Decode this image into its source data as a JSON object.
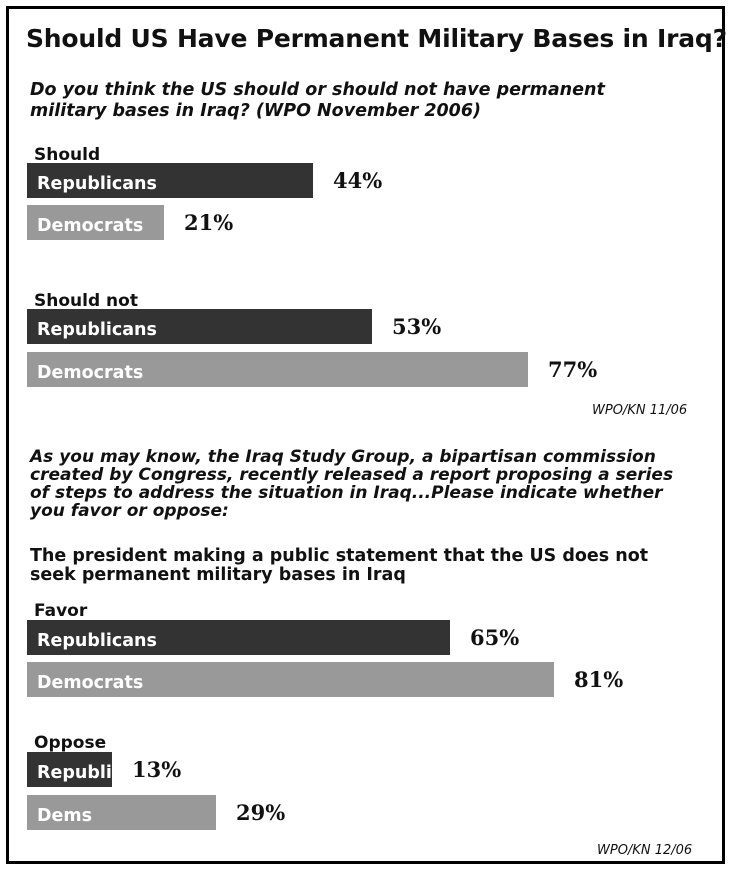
{
  "title": "Should US Have Permanent Military Bases in Iraq?",
  "q1": {
    "line1": "Do you think the US should or should not have permanent",
    "line2": "military bases in Iraq?  (WPO November 2006)"
  },
  "q2": {
    "line1": "As you may know, the Iraq Study Group, a bipartisan commission",
    "line2": "created by Congress, recently released a report proposing a series",
    "line3": "of steps to address the situation in Iraq...Please indicate whether",
    "line4": "you favor or oppose:"
  },
  "statement": {
    "line1": "The president making a public statement that the US does not",
    "line2": "seek permanent military bases in Iraq"
  },
  "source1": "WPO/KN 11/06",
  "source2": "WPO/KN 12/06",
  "colors": {
    "republicans": "#333333",
    "democrats": "#999999"
  },
  "chart_data": {
    "type": "bar",
    "orientation": "horizontal",
    "unit": "%",
    "groups": [
      {
        "label": "Should",
        "bars": [
          {
            "name": "Republicans",
            "value": 44,
            "display": "44%"
          },
          {
            "name": "Democrats",
            "value": 21,
            "display": "21%"
          }
        ]
      },
      {
        "label": "Should not",
        "bars": [
          {
            "name": "Republicans",
            "value": 53,
            "display": "53%"
          },
          {
            "name": "Democrats",
            "value": 77,
            "display": "77%"
          }
        ]
      },
      {
        "label": "Favor",
        "bars": [
          {
            "name": "Republicans",
            "value": 65,
            "display": "65%"
          },
          {
            "name": "Democrats",
            "value": 81,
            "display": "81%"
          }
        ]
      },
      {
        "label": "Oppose",
        "bars": [
          {
            "name": "Republicans",
            "value": 13,
            "display": "13%"
          },
          {
            "name": "Dems",
            "value": 29,
            "display": "29%"
          }
        ]
      }
    ]
  }
}
